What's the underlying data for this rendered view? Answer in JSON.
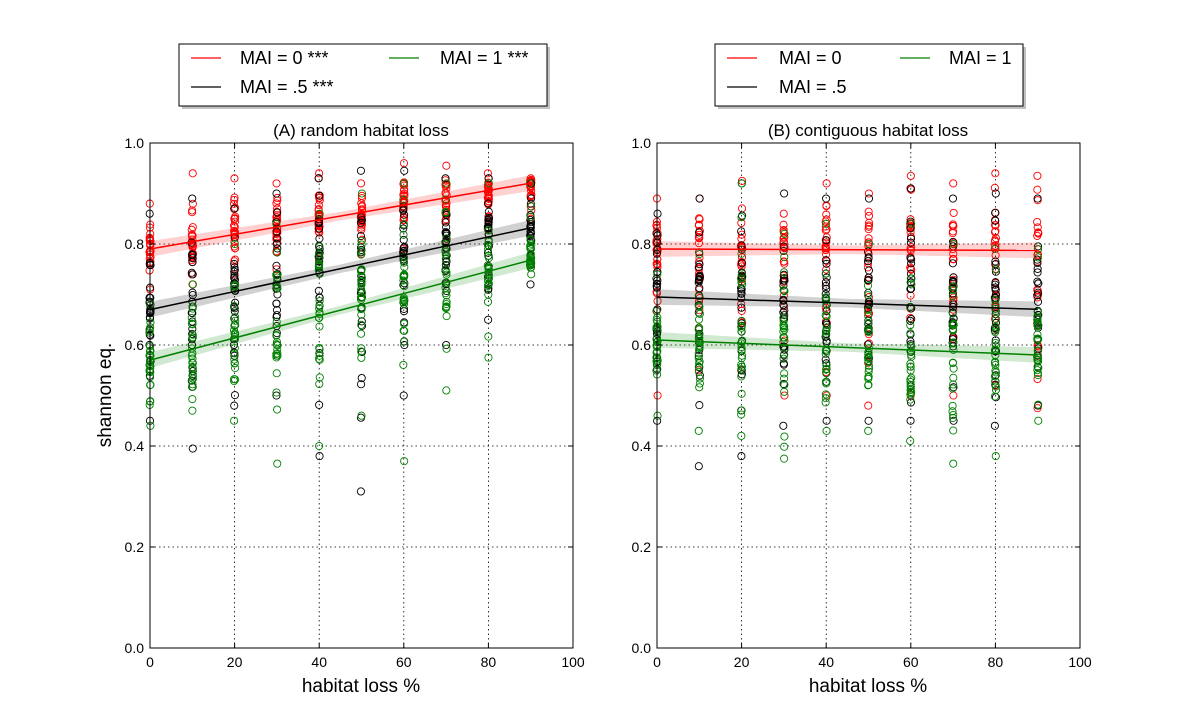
{
  "chart_data": [
    {
      "type": "scatter",
      "title": "(A) random habitat loss",
      "xlabel": "habitat loss %",
      "ylabel": "shannon eq.",
      "xlim": [
        0,
        100
      ],
      "ylim": [
        0.0,
        1.0
      ],
      "x_ticks": [
        0,
        20,
        40,
        60,
        80,
        100
      ],
      "y_ticks": [
        0.0,
        0.2,
        0.4,
        0.6,
        0.8,
        1.0
      ],
      "grid": true,
      "legend": {
        "placement": "above",
        "columns": 2
      },
      "x": [
        0,
        10,
        20,
        30,
        40,
        50,
        60,
        70,
        80,
        90
      ],
      "series": [
        {
          "name": "MAI = 0 ***",
          "color": "#ff0000",
          "fit": {
            "intercept": 0.79,
            "slope": 0.00145
          },
          "means": [
            0.79,
            0.805,
            0.82,
            0.835,
            0.85,
            0.86,
            0.875,
            0.89,
            0.905,
            0.92
          ],
          "mins": [
            0.71,
            0.72,
            0.74,
            0.75,
            0.77,
            0.78,
            0.79,
            0.81,
            0.83,
            0.85
          ],
          "maxs": [
            0.88,
            0.94,
            0.93,
            0.92,
            0.94,
            0.92,
            0.96,
            0.955,
            0.94,
            0.93
          ]
        },
        {
          "name": "MAI = .5 ***",
          "color": "#000000",
          "fit": {
            "intercept": 0.67,
            "slope": 0.0018
          },
          "means": [
            0.67,
            0.69,
            0.705,
            0.725,
            0.74,
            0.76,
            0.775,
            0.795,
            0.81,
            0.83
          ],
          "mins": [
            0.45,
            0.395,
            0.48,
            0.5,
            0.38,
            0.31,
            0.5,
            0.6,
            0.65,
            0.72
          ],
          "maxs": [
            0.86,
            0.89,
            0.87,
            0.9,
            0.93,
            0.945,
            0.945,
            0.93,
            0.93,
            0.92
          ]
        },
        {
          "name": "MAI = 1 ***",
          "color": "#008000",
          "fit": {
            "intercept": 0.57,
            "slope": 0.0022
          },
          "means": [
            0.57,
            0.59,
            0.615,
            0.635,
            0.655,
            0.68,
            0.7,
            0.725,
            0.745,
            0.77
          ],
          "mins": [
            0.44,
            0.47,
            0.45,
            0.365,
            0.4,
            0.46,
            0.37,
            0.51,
            0.575,
            0.74
          ],
          "maxs": [
            0.68,
            0.72,
            0.8,
            0.84,
            0.86,
            0.9,
            0.92,
            0.92,
            0.92,
            0.92
          ]
        }
      ]
    },
    {
      "type": "scatter",
      "title": "(B) contiguous habitat loss",
      "xlabel": "habitat loss %",
      "ylabel": "",
      "xlim": [
        0,
        100
      ],
      "ylim": [
        0.0,
        1.0
      ],
      "x_ticks": [
        0,
        20,
        40,
        60,
        80,
        100
      ],
      "y_ticks": [
        0.0,
        0.2,
        0.4,
        0.6,
        0.8,
        1.0
      ],
      "grid": true,
      "legend": {
        "placement": "above",
        "columns": 2
      },
      "x": [
        0,
        10,
        20,
        30,
        40,
        50,
        60,
        70,
        80,
        90
      ],
      "series": [
        {
          "name": "MAI = 0",
          "color": "#ff0000",
          "fit": {
            "intercept": 0.79,
            "slope": -3e-05
          },
          "means": [
            0.79,
            0.79,
            0.79,
            0.79,
            0.79,
            0.79,
            0.79,
            0.79,
            0.79,
            0.79
          ],
          "mins": [
            0.5,
            0.55,
            0.55,
            0.5,
            0.5,
            0.48,
            0.5,
            0.5,
            0.52,
            0.475
          ],
          "maxs": [
            0.89,
            0.89,
            0.925,
            0.86,
            0.92,
            0.9,
            0.935,
            0.92,
            0.94,
            0.935
          ]
        },
        {
          "name": "MAI = .5",
          "color": "#000000",
          "fit": {
            "intercept": 0.695,
            "slope": -0.00027
          },
          "means": [
            0.695,
            0.69,
            0.69,
            0.687,
            0.684,
            0.682,
            0.68,
            0.676,
            0.673,
            0.67
          ],
          "mins": [
            0.45,
            0.36,
            0.38,
            0.44,
            0.45,
            0.45,
            0.45,
            0.45,
            0.44,
            0.48
          ],
          "maxs": [
            0.86,
            0.89,
            0.92,
            0.9,
            0.89,
            0.89,
            0.91,
            0.89,
            0.9,
            0.89
          ]
        },
        {
          "name": "MAI = 1",
          "color": "#008000",
          "fit": {
            "intercept": 0.61,
            "slope": -0.00033
          },
          "means": [
            0.61,
            0.605,
            0.6,
            0.597,
            0.594,
            0.59,
            0.587,
            0.583,
            0.58,
            0.58
          ],
          "mins": [
            0.46,
            0.43,
            0.42,
            0.375,
            0.43,
            0.43,
            0.41,
            0.365,
            0.38,
            0.45
          ],
          "maxs": [
            0.74,
            0.78,
            0.92,
            0.82,
            0.84,
            0.8,
            0.84,
            0.8,
            0.79,
            0.79
          ]
        }
      ]
    }
  ]
}
